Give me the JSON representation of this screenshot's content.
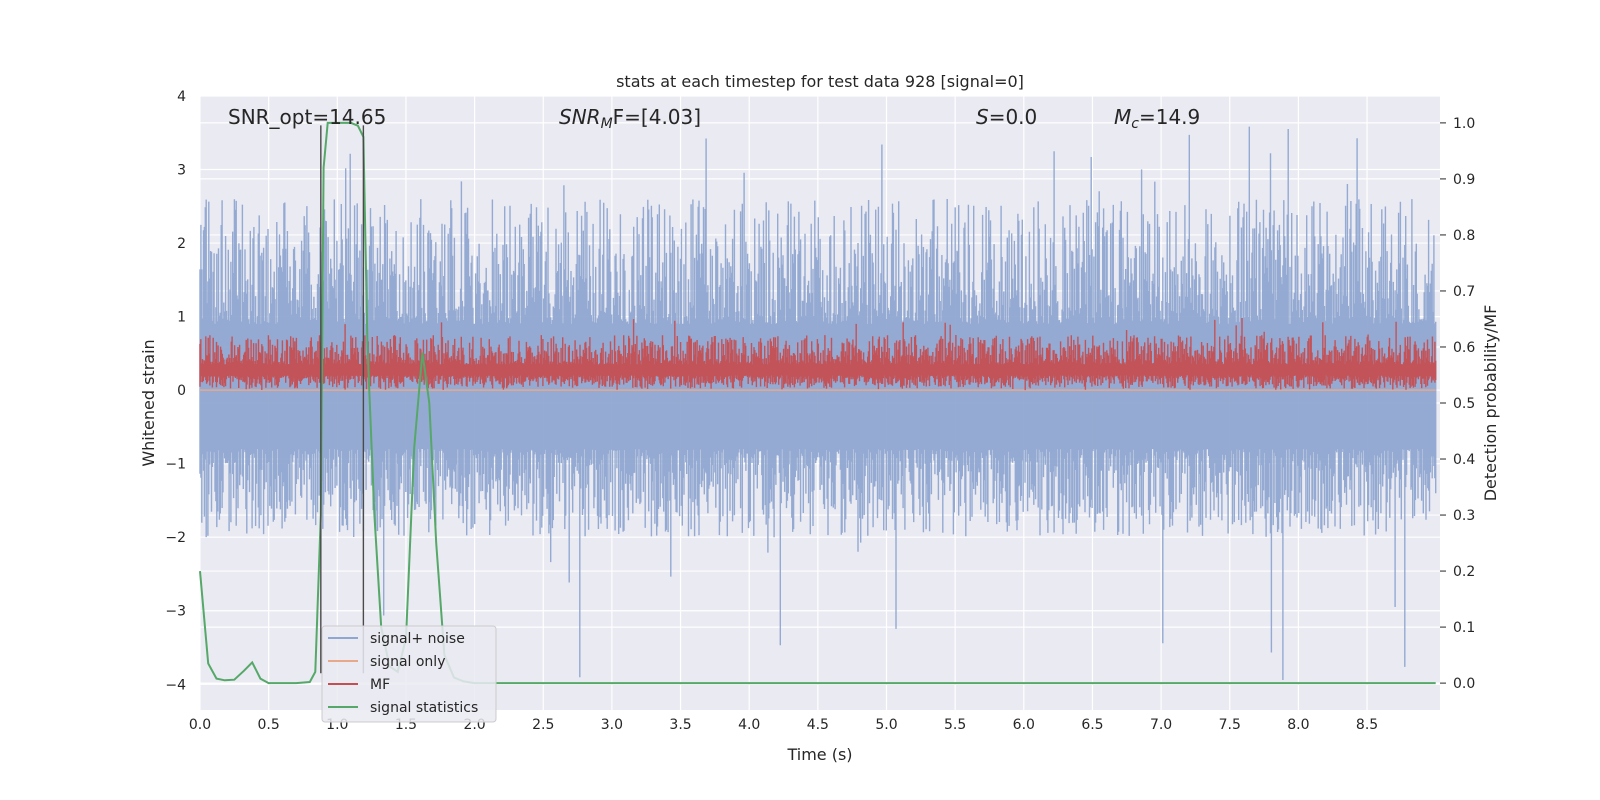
{
  "chart_data": {
    "type": "line",
    "title": "stats at each timestep for test data 928 [signal=0]",
    "xlabel": "Time (s)",
    "ylabel": "Whitened strain",
    "y2label": "Detection probability/MF",
    "xlim": [
      0,
      9.0
    ],
    "ylim": [
      -4.35,
      4.0
    ],
    "y2lim": [
      -0.048,
      1.048
    ],
    "xticks": [
      "0.0",
      "0.5",
      "1.0",
      "1.5",
      "2.0",
      "2.5",
      "3.0",
      "3.5",
      "4.0",
      "4.5",
      "5.0",
      "5.5",
      "6.0",
      "6.5",
      "7.0",
      "7.5",
      "8.0",
      "8.5"
    ],
    "yticks": [
      "4",
      "3",
      "2",
      "1",
      "0",
      "−1",
      "−2",
      "−3",
      "−4"
    ],
    "y2ticks": [
      "1.0",
      "0.9",
      "0.8",
      "0.7",
      "0.6",
      "0.5",
      "0.4",
      "0.3",
      "0.2",
      "0.1",
      "0.0"
    ],
    "grid": true,
    "legend_position": "lower-left",
    "annotations": [
      {
        "id": "snr-opt",
        "text": "SNR_opt=14.65"
      },
      {
        "id": "snr-mf",
        "base": "SNR",
        "sub": "M",
        "rest": "F=[4.03]"
      },
      {
        "id": "s-value",
        "base": "S",
        "rest": "=0.0"
      },
      {
        "id": "mc-value",
        "base": "M",
        "sub": "c",
        "rest": "=14.9"
      }
    ],
    "vertical_markers": [
      {
        "x": 0.88,
        "y_top": 3.6,
        "y_bottom": -3.85
      },
      {
        "x": 1.19,
        "y_top": 3.6,
        "y_bottom": -3.85
      }
    ],
    "series": [
      {
        "name": "signal+ noise",
        "axis": "left",
        "color": "#8fa6d0",
        "kind": "noise-band",
        "x_range": [
          0,
          9.0
        ],
        "typical_upper": [
          0.9,
          2.6
        ],
        "typical_lower": [
          -2.0,
          -0.8
        ],
        "peak_max": 3.6,
        "peak_min": -4.0
      },
      {
        "name": "signal only",
        "axis": "left",
        "color": "#e8a98b",
        "x": [
          0,
          9.0
        ],
        "values": [
          0,
          0
        ]
      },
      {
        "name": "MF",
        "axis": "left",
        "color": "#c44e52",
        "kind": "noise-band",
        "x_range": [
          0,
          9.0
        ],
        "typical_upper": [
          0.35,
          0.75
        ],
        "typical_lower": [
          0.02,
          0.2
        ],
        "peak_max": 1.0,
        "peak_min": 0.0
      },
      {
        "name": "signal statistics",
        "axis": "right",
        "color": "#55a868",
        "x": [
          0.0,
          0.06,
          0.12,
          0.18,
          0.25,
          0.32,
          0.38,
          0.44,
          0.5,
          0.6,
          0.7,
          0.8,
          0.84,
          0.88,
          0.9,
          0.93,
          1.0,
          1.05,
          1.1,
          1.15,
          1.19,
          1.22,
          1.27,
          1.32,
          1.38,
          1.44,
          1.5,
          1.56,
          1.62,
          1.67,
          1.72,
          1.78,
          1.85,
          1.92,
          2.0,
          2.5,
          3.0,
          4.0,
          5.0,
          6.0,
          7.0,
          8.0,
          9.0
        ],
        "values": [
          0.2,
          0.035,
          0.008,
          0.005,
          0.006,
          0.022,
          0.037,
          0.008,
          0.0,
          0.0,
          0.0,
          0.002,
          0.02,
          0.3,
          0.92,
          1.0,
          1.0,
          1.0,
          1.0,
          0.995,
          0.975,
          0.6,
          0.3,
          0.1,
          0.03,
          0.02,
          0.08,
          0.42,
          0.59,
          0.5,
          0.25,
          0.05,
          0.01,
          0.003,
          0.0,
          0.0,
          0.0,
          0.0,
          0.0,
          0.0,
          0.0,
          0.0,
          0.0
        ]
      }
    ]
  }
}
